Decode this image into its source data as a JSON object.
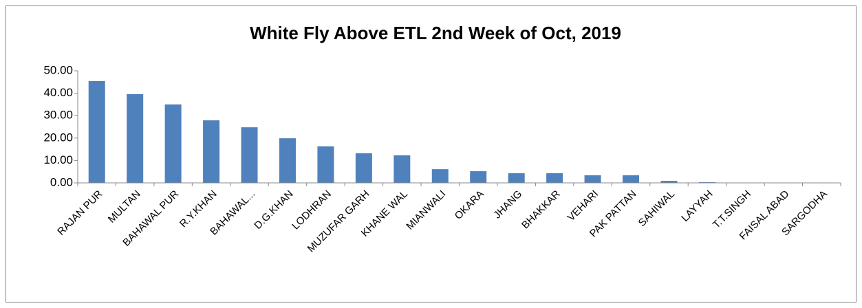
{
  "chart_data": {
    "type": "bar",
    "title": "White Fly Above ETL 2nd Week of Oct, 2019",
    "categories": [
      "RAJAN PUR",
      "MULTAN",
      "BAHAWAL PUR",
      "R.Y.KHAN",
      "BAHAWAL...",
      "D.G.KHAN",
      "LODHRAN",
      "MUZUFAR GARH",
      "KHANE WAL",
      "MIANWALI",
      "OKARA",
      "JHANG",
      "BHAKKAR",
      "VEHARI",
      "PAK PATTAN",
      "SAHIWAL",
      "LAYYAH",
      "T.T.SINGH",
      "FAISAL ABAD",
      "SARGODHA"
    ],
    "values": [
      45.4,
      39.6,
      35.0,
      27.9,
      24.8,
      19.9,
      16.3,
      13.2,
      12.3,
      6.1,
      5.2,
      4.3,
      4.3,
      3.4,
      3.4,
      0.9,
      0.3,
      0,
      0,
      0
    ],
    "color": "#4f81bd",
    "ylim": [
      0,
      50
    ],
    "yticks": [
      {
        "value": 0,
        "label": "0.00"
      },
      {
        "value": 10,
        "label": "10.00"
      },
      {
        "value": 20,
        "label": "20.00"
      },
      {
        "value": 30,
        "label": "30.00"
      },
      {
        "value": 40,
        "label": "40.00"
      },
      {
        "value": 50,
        "label": "50.00"
      }
    ],
    "grid": false
  }
}
